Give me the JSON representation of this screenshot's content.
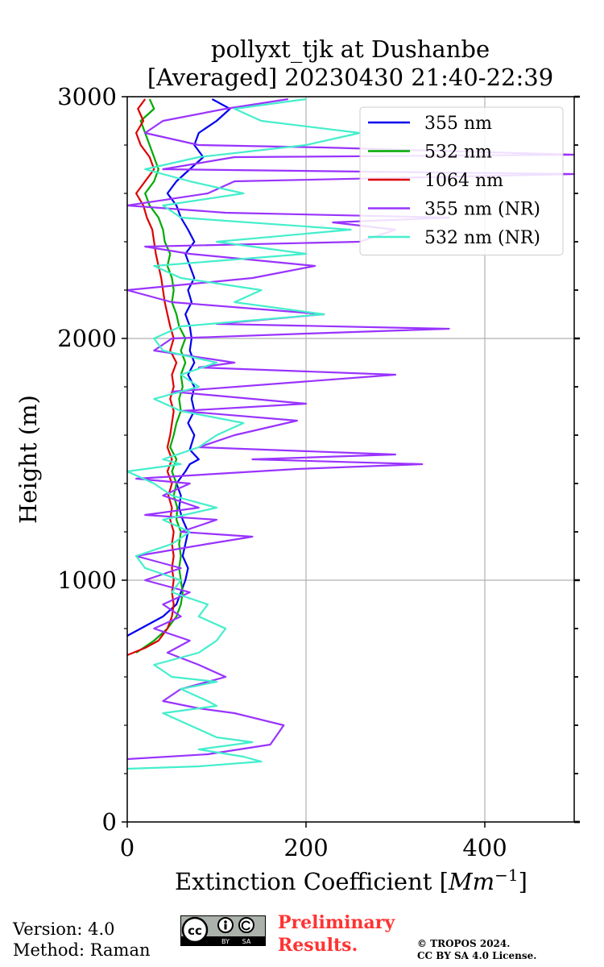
{
  "chart_data": {
    "type": "line",
    "title": [
      "pollyxt_tjk at Dushanbe",
      "[Averaged] 20230430 21:40-22:39"
    ],
    "xlabel": "Extinction Coefficient [",
    "xlabel_unit": "Mm",
    "xlabel_exp": "−1",
    "xlabel_end": "]",
    "ylabel": "Height (m)",
    "xlim": [
      0,
      500
    ],
    "ylim": [
      0,
      3000
    ],
    "xticks": [
      0,
      200,
      400
    ],
    "yticks": [
      0,
      1000,
      2000,
      3000
    ],
    "x_grid": [
      0,
      200,
      400
    ],
    "y_grid": [
      0,
      1000,
      2000,
      3000
    ],
    "y_minor_step": 200,
    "legend_position": "top-right",
    "series": [
      {
        "name": "355 nm",
        "color": "#0000ee",
        "points": [
          [
            0,
            770
          ],
          [
            15,
            800
          ],
          [
            40,
            850
          ],
          [
            55,
            900
          ],
          [
            60,
            950
          ],
          [
            65,
            1000
          ],
          [
            68,
            1050
          ],
          [
            62,
            1100
          ],
          [
            65,
            1150
          ],
          [
            68,
            1200
          ],
          [
            62,
            1250
          ],
          [
            58,
            1300
          ],
          [
            60,
            1350
          ],
          [
            55,
            1400
          ],
          [
            65,
            1450
          ],
          [
            70,
            1480
          ],
          [
            80,
            1500
          ],
          [
            70,
            1540
          ],
          [
            75,
            1600
          ],
          [
            68,
            1650
          ],
          [
            75,
            1700
          ],
          [
            72,
            1750
          ],
          [
            75,
            1800
          ],
          [
            68,
            1850
          ],
          [
            75,
            1900
          ],
          [
            70,
            1950
          ],
          [
            72,
            2000
          ],
          [
            70,
            2050
          ],
          [
            65,
            2100
          ],
          [
            72,
            2150
          ],
          [
            68,
            2200
          ],
          [
            75,
            2250
          ],
          [
            70,
            2300
          ],
          [
            65,
            2350
          ],
          [
            75,
            2400
          ],
          [
            68,
            2450
          ],
          [
            60,
            2500
          ],
          [
            55,
            2550
          ],
          [
            45,
            2600
          ],
          [
            55,
            2650
          ],
          [
            70,
            2700
          ],
          [
            85,
            2750
          ],
          [
            75,
            2800
          ],
          [
            80,
            2850
          ],
          [
            100,
            2900
          ],
          [
            115,
            2950
          ],
          [
            95,
            2990
          ]
        ]
      },
      {
        "name": "532 nm",
        "color": "#00aa00",
        "points": [
          [
            10,
            700
          ],
          [
            30,
            750
          ],
          [
            45,
            800
          ],
          [
            55,
            850
          ],
          [
            60,
            900
          ],
          [
            62,
            950
          ],
          [
            60,
            1000
          ],
          [
            58,
            1050
          ],
          [
            60,
            1100
          ],
          [
            58,
            1150
          ],
          [
            60,
            1200
          ],
          [
            55,
            1250
          ],
          [
            56,
            1300
          ],
          [
            52,
            1350
          ],
          [
            55,
            1400
          ],
          [
            50,
            1450
          ],
          [
            55,
            1500
          ],
          [
            48,
            1550
          ],
          [
            52,
            1600
          ],
          [
            55,
            1650
          ],
          [
            60,
            1700
          ],
          [
            58,
            1750
          ],
          [
            62,
            1800
          ],
          [
            60,
            1850
          ],
          [
            65,
            1900
          ],
          [
            60,
            1950
          ],
          [
            65,
            2000
          ],
          [
            58,
            2050
          ],
          [
            55,
            2100
          ],
          [
            50,
            2150
          ],
          [
            52,
            2200
          ],
          [
            50,
            2250
          ],
          [
            45,
            2300
          ],
          [
            48,
            2350
          ],
          [
            42,
            2400
          ],
          [
            40,
            2450
          ],
          [
            35,
            2500
          ],
          [
            25,
            2550
          ],
          [
            20,
            2600
          ],
          [
            30,
            2650
          ],
          [
            35,
            2700
          ],
          [
            30,
            2750
          ],
          [
            25,
            2800
          ],
          [
            20,
            2850
          ],
          [
            15,
            2900
          ],
          [
            30,
            2950
          ],
          [
            25,
            2990
          ]
        ]
      },
      {
        "name": "1064 nm",
        "color": "#dd0000",
        "points": [
          [
            0,
            690
          ],
          [
            20,
            720
          ],
          [
            35,
            750
          ],
          [
            45,
            800
          ],
          [
            50,
            850
          ],
          [
            52,
            900
          ],
          [
            50,
            950
          ],
          [
            52,
            1000
          ],
          [
            50,
            1050
          ],
          [
            52,
            1100
          ],
          [
            50,
            1150
          ],
          [
            52,
            1200
          ],
          [
            48,
            1250
          ],
          [
            50,
            1300
          ],
          [
            46,
            1350
          ],
          [
            50,
            1400
          ],
          [
            45,
            1450
          ],
          [
            50,
            1500
          ],
          [
            45,
            1550
          ],
          [
            48,
            1600
          ],
          [
            50,
            1650
          ],
          [
            52,
            1700
          ],
          [
            48,
            1750
          ],
          [
            52,
            1800
          ],
          [
            50,
            1850
          ],
          [
            55,
            1900
          ],
          [
            48,
            1950
          ],
          [
            52,
            2000
          ],
          [
            48,
            2050
          ],
          [
            45,
            2100
          ],
          [
            42,
            2150
          ],
          [
            40,
            2200
          ],
          [
            38,
            2250
          ],
          [
            35,
            2300
          ],
          [
            32,
            2350
          ],
          [
            30,
            2400
          ],
          [
            28,
            2450
          ],
          [
            22,
            2500
          ],
          [
            18,
            2550
          ],
          [
            10,
            2600
          ],
          [
            20,
            2650
          ],
          [
            30,
            2700
          ],
          [
            25,
            2750
          ],
          [
            15,
            2800
          ],
          [
            10,
            2850
          ],
          [
            18,
            2900
          ],
          [
            12,
            2950
          ],
          [
            20,
            2990
          ]
        ]
      },
      {
        "name": "355 nm (NR)",
        "color": "#9933ff",
        "points": [
          [
            0,
            260
          ],
          [
            90,
            280
          ],
          [
            160,
            320
          ],
          [
            175,
            400
          ],
          [
            120,
            450
          ],
          [
            80,
            470
          ],
          [
            40,
            500
          ],
          [
            60,
            550
          ],
          [
            110,
            600
          ],
          [
            80,
            650
          ],
          [
            45,
            700
          ],
          [
            70,
            750
          ],
          [
            30,
            800
          ],
          [
            60,
            850
          ],
          [
            40,
            900
          ],
          [
            70,
            950
          ],
          [
            20,
            1000
          ],
          [
            60,
            1050
          ],
          [
            10,
            1100
          ],
          [
            90,
            1150
          ],
          [
            140,
            1180
          ],
          [
            60,
            1200
          ],
          [
            100,
            1250
          ],
          [
            20,
            1270
          ],
          [
            80,
            1300
          ],
          [
            40,
            1350
          ],
          [
            70,
            1400
          ],
          [
            10,
            1420
          ],
          [
            190,
            1460
          ],
          [
            330,
            1480
          ],
          [
            140,
            1500
          ],
          [
            300,
            1520
          ],
          [
            80,
            1550
          ],
          [
            120,
            1600
          ],
          [
            190,
            1660
          ],
          [
            60,
            1700
          ],
          [
            200,
            1730
          ],
          [
            50,
            1780
          ],
          [
            300,
            1850
          ],
          [
            80,
            1880
          ],
          [
            120,
            1900
          ],
          [
            30,
            1950
          ],
          [
            50,
            2000
          ],
          [
            200,
            2020
          ],
          [
            360,
            2040
          ],
          [
            100,
            2060
          ],
          [
            220,
            2100
          ],
          [
            50,
            2150
          ],
          [
            0,
            2200
          ],
          [
            140,
            2250
          ],
          [
            210,
            2300
          ],
          [
            70,
            2350
          ],
          [
            20,
            2380
          ],
          [
            260,
            2400
          ],
          [
            300,
            2450
          ],
          [
            230,
            2480
          ],
          [
            360,
            2500
          ],
          [
            110,
            2520
          ],
          [
            0,
            2550
          ],
          [
            90,
            2600
          ],
          [
            120,
            2650
          ],
          [
            500,
            2680
          ],
          [
            40,
            2700
          ],
          [
            120,
            2750
          ],
          [
            500,
            2760
          ],
          [
            220,
            2790
          ],
          [
            80,
            2800
          ],
          [
            20,
            2850
          ],
          [
            40,
            2900
          ],
          [
            110,
            2950
          ],
          [
            180,
            2990
          ]
        ]
      },
      {
        "name": "532 nm (NR)",
        "color": "#44eecc",
        "points": [
          [
            0,
            220
          ],
          [
            80,
            230
          ],
          [
            150,
            250
          ],
          [
            130,
            270
          ],
          [
            80,
            300
          ],
          [
            140,
            330
          ],
          [
            100,
            350
          ],
          [
            70,
            400
          ],
          [
            40,
            450
          ],
          [
            100,
            480
          ],
          [
            90,
            500
          ],
          [
            60,
            550
          ],
          [
            100,
            580
          ],
          [
            50,
            600
          ],
          [
            30,
            650
          ],
          [
            80,
            700
          ],
          [
            100,
            750
          ],
          [
            110,
            800
          ],
          [
            80,
            850
          ],
          [
            90,
            900
          ],
          [
            50,
            950
          ],
          [
            60,
            1000
          ],
          [
            20,
            1050
          ],
          [
            10,
            1100
          ],
          [
            50,
            1150
          ],
          [
            70,
            1200
          ],
          [
            40,
            1250
          ],
          [
            100,
            1300
          ],
          [
            50,
            1350
          ],
          [
            30,
            1400
          ],
          [
            0,
            1450
          ],
          [
            60,
            1480
          ],
          [
            40,
            1500
          ],
          [
            80,
            1550
          ],
          [
            100,
            1600
          ],
          [
            130,
            1650
          ],
          [
            60,
            1700
          ],
          [
            30,
            1750
          ],
          [
            80,
            1800
          ],
          [
            60,
            1850
          ],
          [
            100,
            1900
          ],
          [
            40,
            1950
          ],
          [
            30,
            2000
          ],
          [
            60,
            2050
          ],
          [
            220,
            2100
          ],
          [
            120,
            2150
          ],
          [
            150,
            2200
          ],
          [
            60,
            2250
          ],
          [
            30,
            2300
          ],
          [
            200,
            2350
          ],
          [
            100,
            2400
          ],
          [
            250,
            2450
          ],
          [
            60,
            2500
          ],
          [
            40,
            2550
          ],
          [
            130,
            2600
          ],
          [
            70,
            2650
          ],
          [
            20,
            2700
          ],
          [
            80,
            2750
          ],
          [
            200,
            2800
          ],
          [
            260,
            2850
          ],
          [
            150,
            2900
          ],
          [
            120,
            2950
          ],
          [
            200,
            2990
          ]
        ]
      }
    ]
  },
  "footer": {
    "version": "Version: 4.0",
    "method": "Method: Raman",
    "prelim_1": "Preliminary",
    "prelim_2": "Results.",
    "copyright_1": "© TROPOS 2024.",
    "copyright_2": "CC BY SA 4.0 License.",
    "cc_label_by": "BY",
    "cc_label_sa": "SA",
    "cc_label_cc": "cc"
  }
}
